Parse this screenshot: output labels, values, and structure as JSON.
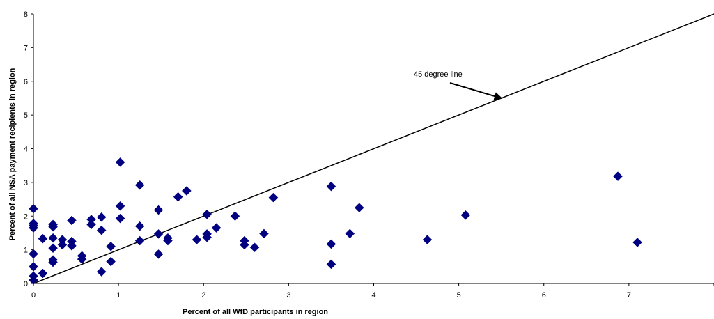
{
  "chart_data": {
    "type": "scatter",
    "title": "",
    "xlabel": "Percent of all WfD participants in region",
    "ylabel": "Percent of all NSA payment recipients in region",
    "xlim": [
      0,
      8
    ],
    "ylim": [
      0,
      8
    ],
    "x_ticks": [
      "0",
      "1",
      "2",
      "3",
      "4",
      "5",
      "6",
      "7"
    ],
    "y_ticks": [
      "0",
      "1",
      "2",
      "3",
      "4",
      "5",
      "6",
      "7",
      "8"
    ],
    "grid": false,
    "legend": "none",
    "marker": "diamond",
    "marker_color": "#000080",
    "reference_line": {
      "name": "45 degree line",
      "from": [
        0,
        0
      ],
      "to": [
        8,
        8
      ]
    },
    "annotation": {
      "text": "45 degree line",
      "arrow_to": [
        5.5,
        5.5
      ]
    },
    "points": [
      [
        0,
        2.22
      ],
      [
        0,
        1.78
      ],
      [
        0,
        1.72
      ],
      [
        0,
        1.65
      ],
      [
        0,
        0.88
      ],
      [
        0,
        0.5
      ],
      [
        0,
        0.22
      ],
      [
        0,
        0.1
      ],
      [
        0.11,
        1.33
      ],
      [
        0.11,
        0.3
      ],
      [
        0.23,
        1.75
      ],
      [
        0.23,
        1.68
      ],
      [
        0.23,
        1.35
      ],
      [
        0.23,
        1.05
      ],
      [
        0.23,
        0.7
      ],
      [
        0.23,
        0.63
      ],
      [
        0.34,
        1.3
      ],
      [
        0.34,
        1.15
      ],
      [
        0.45,
        1.87
      ],
      [
        0.45,
        1.25
      ],
      [
        0.45,
        1.12
      ],
      [
        0.57,
        0.82
      ],
      [
        0.57,
        0.72
      ],
      [
        0.68,
        1.9
      ],
      [
        0.68,
        1.75
      ],
      [
        0.8,
        1.97
      ],
      [
        0.8,
        1.58
      ],
      [
        0.8,
        0.35
      ],
      [
        0.91,
        1.1
      ],
      [
        0.91,
        0.65
      ],
      [
        1.02,
        3.6
      ],
      [
        1.02,
        2.3
      ],
      [
        1.02,
        1.93
      ],
      [
        1.25,
        2.92
      ],
      [
        1.25,
        1.7
      ],
      [
        1.25,
        1.27
      ],
      [
        1.47,
        2.18
      ],
      [
        1.47,
        1.47
      ],
      [
        1.47,
        0.87
      ],
      [
        1.58,
        1.35
      ],
      [
        1.58,
        1.27
      ],
      [
        1.7,
        2.57
      ],
      [
        1.8,
        2.75
      ],
      [
        1.92,
        1.3
      ],
      [
        2.04,
        2.05
      ],
      [
        2.04,
        1.47
      ],
      [
        2.04,
        1.37
      ],
      [
        2.15,
        1.65
      ],
      [
        2.37,
        2.0
      ],
      [
        2.48,
        1.27
      ],
      [
        2.48,
        1.15
      ],
      [
        2.6,
        1.07
      ],
      [
        2.71,
        1.48
      ],
      [
        2.82,
        2.55
      ],
      [
        3.5,
        2.88
      ],
      [
        3.5,
        1.17
      ],
      [
        3.5,
        0.57
      ],
      [
        3.72,
        1.48
      ],
      [
        3.83,
        2.25
      ],
      [
        4.63,
        1.3
      ],
      [
        5.08,
        2.03
      ],
      [
        6.87,
        3.18
      ],
      [
        7.1,
        1.22
      ]
    ]
  }
}
